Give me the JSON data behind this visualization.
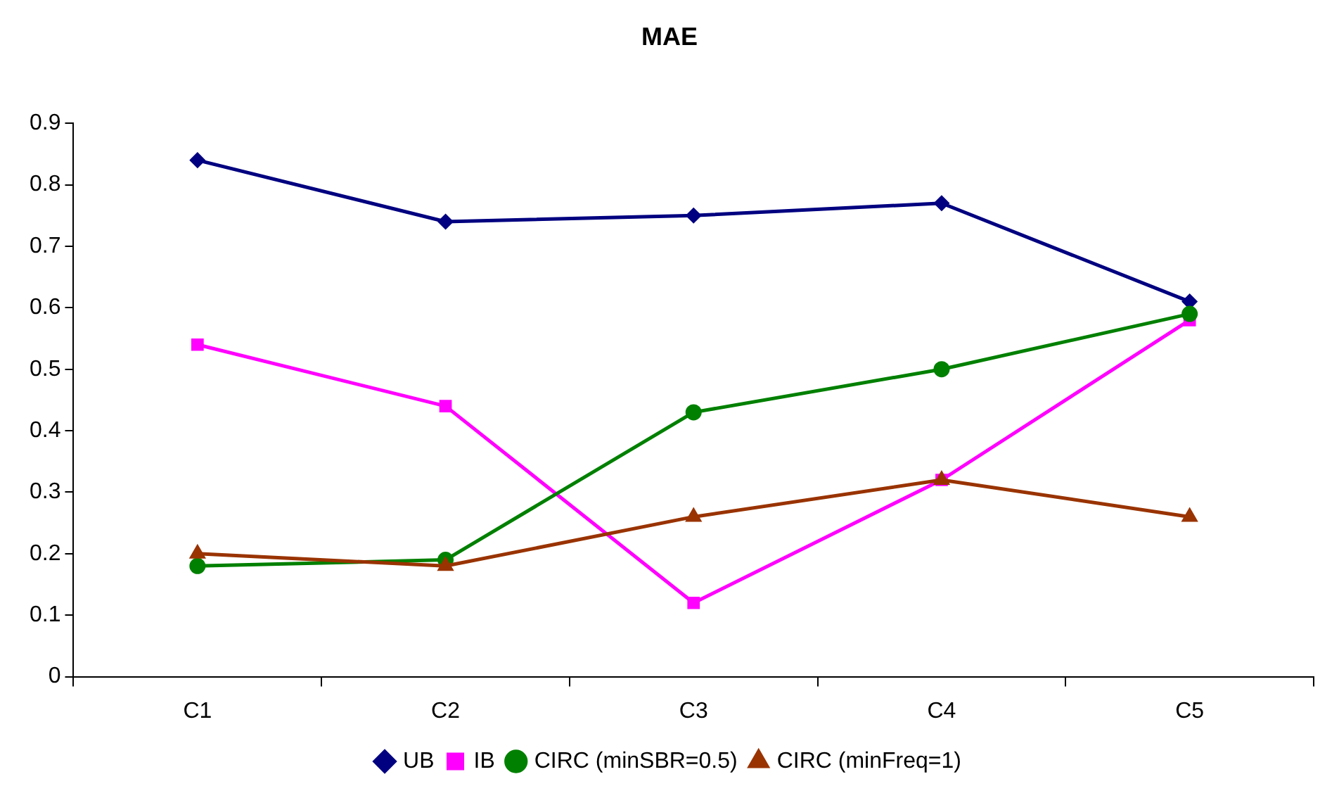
{
  "chart_data": {
    "type": "line",
    "title": "MAE",
    "categories": [
      "C1",
      "C2",
      "C3",
      "C4",
      "C5"
    ],
    "series": [
      {
        "name": "UB",
        "color": "#000080",
        "marker": "diamond",
        "values": [
          0.84,
          0.74,
          0.75,
          0.77,
          0.61
        ]
      },
      {
        "name": "IB",
        "color": "#ff00ff",
        "marker": "square",
        "values": [
          0.54,
          0.44,
          0.12,
          0.32,
          0.58
        ]
      },
      {
        "name": "CIRC (minSBR=0.5)",
        "color": "#008000",
        "marker": "circle",
        "values": [
          0.18,
          0.19,
          0.43,
          0.5,
          0.59
        ]
      },
      {
        "name": "CIRC (minFreq=1)",
        "color": "#993300",
        "marker": "triangle",
        "values": [
          0.2,
          0.18,
          0.26,
          0.32,
          0.26
        ]
      }
    ],
    "ylim": [
      0,
      0.9
    ],
    "yticks": [
      0,
      0.1,
      0.2,
      0.3,
      0.4,
      0.5,
      0.6,
      0.7,
      0.8,
      0.9
    ],
    "grid": false,
    "legend": "bottom",
    "line_style": "solid"
  }
}
